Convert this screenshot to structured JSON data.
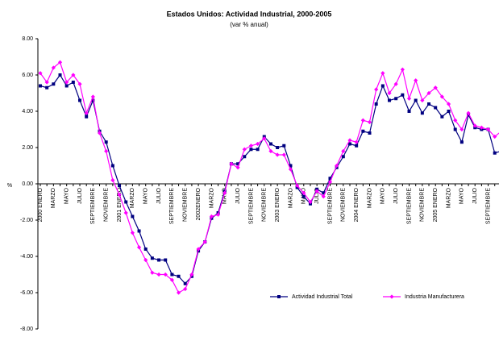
{
  "chart_data": {
    "type": "line",
    "title": "Estados Unidos: Actividad Industrial, 2000-2005",
    "subtitle": "(var % anual)",
    "y_label": "%",
    "categories": [
      "2000 ENERO",
      null,
      "MARZO",
      null,
      "MAYO",
      null,
      "JULIO",
      null,
      "SEPTIEMBRE",
      null,
      "NOVIEMBRE",
      null,
      "2001 ENERO",
      null,
      "MARZO",
      null,
      "MAYO",
      null,
      "JULIO",
      null,
      "SEPTIEMBRE",
      null,
      "NOVIEMBRE",
      null,
      "2002ENERO",
      null,
      "MARZO",
      null,
      "MAYO",
      null,
      "JULIO",
      null,
      "SEPTIEMBRE",
      null,
      "NOVIEMBRE",
      null,
      "2003 ENERO",
      null,
      "MARZO",
      null,
      "MAYO",
      null,
      "JULIO",
      null,
      "SEPTIEMBRE",
      null,
      "NOVIEMBRE",
      null,
      "2004 ENERO",
      null,
      "MARZO",
      null,
      "MAYO",
      null,
      "JULIO",
      null,
      "SEPTIEMBRE",
      null,
      "NOVIEMBRE",
      null,
      "2005 ENERO",
      null,
      "MARZO",
      null,
      "MAYO",
      null,
      "JULIO",
      null,
      "SEPTIEMBRE",
      null,
      null
    ],
    "series": [
      {
        "name": "Actividad Industrial Total",
        "color": "#000080",
        "marker": "square",
        "values": [
          5.4,
          5.3,
          5.5,
          6.0,
          5.4,
          5.6,
          4.6,
          3.7,
          4.6,
          2.9,
          2.3,
          1.0,
          -0.1,
          -1.0,
          -1.8,
          -2.6,
          -3.6,
          -4.1,
          -4.2,
          -4.2,
          -5.0,
          -5.1,
          -5.5,
          -5.1,
          -3.7,
          -3.2,
          -1.9,
          -1.6,
          -0.4,
          1.1,
          1.1,
          1.5,
          1.9,
          1.9,
          2.6,
          2.2,
          2.0,
          2.1,
          1.0,
          -0.2,
          -0.7,
          -1.1,
          -0.3,
          -0.5,
          0.3,
          0.9,
          1.5,
          2.2,
          2.1,
          2.9,
          2.8,
          4.4,
          5.4,
          4.6,
          4.7,
          4.9,
          4.0,
          4.6,
          3.9,
          4.4,
          4.2,
          3.7,
          4.0,
          3.0,
          2.3,
          3.8,
          3.1,
          3.0,
          3.0,
          1.7,
          1.8
        ]
      },
      {
        "name": "Industria Manufacturera",
        "color": "#ff00ff",
        "marker": "diamond",
        "values": [
          6.1,
          5.6,
          6.4,
          6.7,
          5.6,
          6.0,
          5.5,
          3.9,
          4.8,
          2.8,
          1.8,
          0.2,
          -0.6,
          -1.6,
          -2.7,
          -3.5,
          -4.2,
          -4.9,
          -5.0,
          -5.0,
          -5.3,
          -6.0,
          -5.8,
          -5.0,
          -3.6,
          -3.2,
          -1.8,
          -1.7,
          -0.5,
          1.1,
          0.9,
          1.9,
          2.1,
          2.2,
          2.5,
          1.8,
          1.6,
          1.6,
          0.8,
          -0.1,
          -0.5,
          -1.0,
          -0.4,
          -0.7,
          0.1,
          1.0,
          1.8,
          2.4,
          2.3,
          3.5,
          3.4,
          5.2,
          6.1,
          5.0,
          5.5,
          6.3,
          4.7,
          5.7,
          4.6,
          5.0,
          5.3,
          4.8,
          4.4,
          3.5,
          3.0,
          3.9,
          3.2,
          3.1,
          3.0,
          2.6,
          2.9
        ]
      }
    ],
    "ylim": [
      -8,
      8
    ],
    "yticks": [
      {
        "value": 8,
        "label": "8.00"
      },
      {
        "value": 6,
        "label": "6.00"
      },
      {
        "value": 4,
        "label": "4.00"
      },
      {
        "value": 2,
        "label": "2.00"
      },
      {
        "value": 0,
        "label": "0.00"
      },
      {
        "value": -2,
        "label": "-2.00"
      },
      {
        "value": -4,
        "label": "-4.00"
      },
      {
        "value": -6,
        "label": "-6.00"
      },
      {
        "value": -8,
        "label": "-8.00"
      }
    ],
    "legend": "bottom"
  }
}
